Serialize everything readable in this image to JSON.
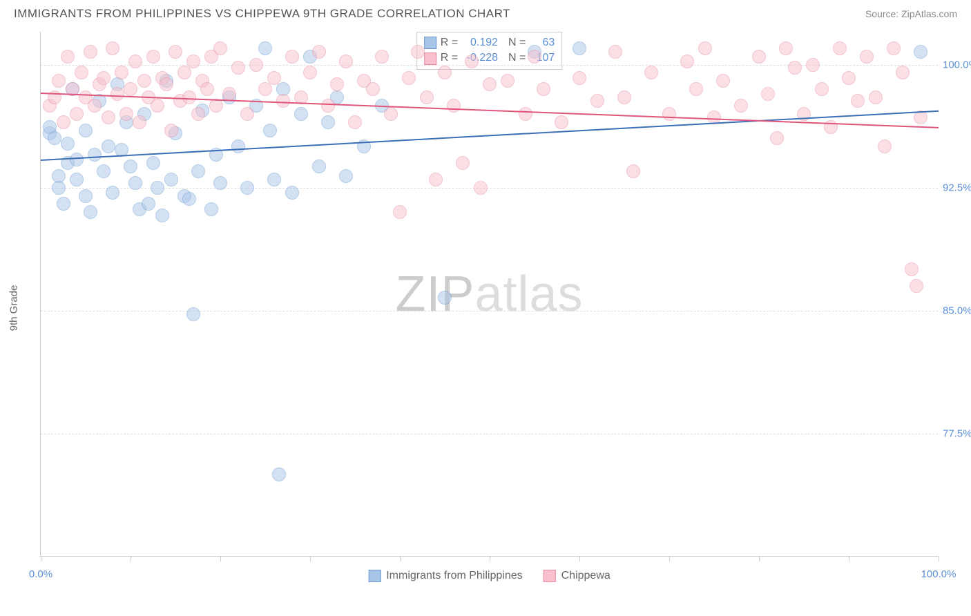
{
  "header": {
    "title": "IMMIGRANTS FROM PHILIPPINES VS CHIPPEWA 9TH GRADE CORRELATION CHART",
    "source": "Source: ZipAtlas.com"
  },
  "chart": {
    "type": "scatter",
    "y_axis_label": "9th Grade",
    "xlim": [
      0,
      100
    ],
    "ylim": [
      70,
      102
    ],
    "x_ticks": [
      0,
      10,
      20,
      30,
      40,
      50,
      60,
      70,
      80,
      90,
      100
    ],
    "x_tick_labels_shown": {
      "0": "0.0%",
      "100": "100.0%"
    },
    "y_grid": [
      77.5,
      85.0,
      92.5,
      100.0
    ],
    "y_tick_labels": [
      "77.5%",
      "85.0%",
      "92.5%",
      "100.0%"
    ],
    "grid_color": "#dddddd",
    "axis_color": "#cccccc",
    "tick_label_color": "#5b8fd6",
    "background_color": "#ffffff",
    "point_radius": 10,
    "point_opacity": 0.5,
    "series": [
      {
        "name": "Immigrants from Philippines",
        "fill": "#a8c5e8",
        "stroke": "#6b9bd1",
        "trend_color": "#3b6fb5",
        "R": "0.192",
        "N": "63",
        "trend": {
          "x1": 0,
          "y1": 94.2,
          "x2": 100,
          "y2": 97.2
        },
        "points": [
          [
            1,
            95.8
          ],
          [
            1,
            96.2
          ],
          [
            1.5,
            95.5
          ],
          [
            2,
            93.2
          ],
          [
            2,
            92.5
          ],
          [
            2.5,
            91.5
          ],
          [
            3,
            94.0
          ],
          [
            3,
            95.2
          ],
          [
            3.5,
            98.5
          ],
          [
            4,
            94.2
          ],
          [
            4,
            93.0
          ],
          [
            5,
            96.0
          ],
          [
            5,
            92.0
          ],
          [
            5.5,
            91.0
          ],
          [
            6,
            94.5
          ],
          [
            6.5,
            97.8
          ],
          [
            7,
            93.5
          ],
          [
            7.5,
            95.0
          ],
          [
            8,
            92.2
          ],
          [
            8.5,
            98.8
          ],
          [
            9,
            94.8
          ],
          [
            9.5,
            96.5
          ],
          [
            10,
            93.8
          ],
          [
            10.5,
            92.8
          ],
          [
            11,
            91.2
          ],
          [
            11.5,
            97.0
          ],
          [
            12,
            91.5
          ],
          [
            12.5,
            94.0
          ],
          [
            13,
            92.5
          ],
          [
            13.5,
            90.8
          ],
          [
            14,
            99.0
          ],
          [
            14.5,
            93.0
          ],
          [
            15,
            95.8
          ],
          [
            16,
            92.0
          ],
          [
            16.5,
            91.8
          ],
          [
            17,
            84.8
          ],
          [
            17.5,
            93.5
          ],
          [
            18,
            97.2
          ],
          [
            19,
            91.2
          ],
          [
            19.5,
            94.5
          ],
          [
            20,
            92.8
          ],
          [
            21,
            98.0
          ],
          [
            22,
            95.0
          ],
          [
            23,
            92.5
          ],
          [
            24,
            97.5
          ],
          [
            25,
            101.0
          ],
          [
            25.5,
            96.0
          ],
          [
            26,
            93.0
          ],
          [
            26.5,
            75.0
          ],
          [
            27,
            98.5
          ],
          [
            28,
            92.2
          ],
          [
            29,
            97.0
          ],
          [
            30,
            100.5
          ],
          [
            31,
            93.8
          ],
          [
            32,
            96.5
          ],
          [
            33,
            98.0
          ],
          [
            34,
            93.2
          ],
          [
            36,
            95.0
          ],
          [
            38,
            97.5
          ],
          [
            45,
            85.8
          ],
          [
            55,
            100.8
          ],
          [
            60,
            101.0
          ],
          [
            98,
            100.8
          ]
        ]
      },
      {
        "name": "Chippewa",
        "fill": "#f7c0cc",
        "stroke": "#e88ba3",
        "trend_color": "#e0567a",
        "R": "-0.228",
        "N": "107",
        "trend": {
          "x1": 0,
          "y1": 98.3,
          "x2": 100,
          "y2": 96.2
        },
        "points": [
          [
            1,
            97.5
          ],
          [
            1.5,
            98.0
          ],
          [
            2,
            99.0
          ],
          [
            2.5,
            96.5
          ],
          [
            3,
            100.5
          ],
          [
            3.5,
            98.5
          ],
          [
            4,
            97.0
          ],
          [
            4.5,
            99.5
          ],
          [
            5,
            98.0
          ],
          [
            5.5,
            100.8
          ],
          [
            6,
            97.5
          ],
          [
            6.5,
            98.8
          ],
          [
            7,
            99.2
          ],
          [
            7.5,
            96.8
          ],
          [
            8,
            101.0
          ],
          [
            8.5,
            98.2
          ],
          [
            9,
            99.5
          ],
          [
            9.5,
            97.0
          ],
          [
            10,
            98.5
          ],
          [
            10.5,
            100.2
          ],
          [
            11,
            96.5
          ],
          [
            11.5,
            99.0
          ],
          [
            12,
            98.0
          ],
          [
            12.5,
            100.5
          ],
          [
            13,
            97.5
          ],
          [
            13.5,
            99.2
          ],
          [
            14,
            98.8
          ],
          [
            14.5,
            96.0
          ],
          [
            15,
            100.8
          ],
          [
            15.5,
            97.8
          ],
          [
            16,
            99.5
          ],
          [
            16.5,
            98.0
          ],
          [
            17,
            100.2
          ],
          [
            17.5,
            97.0
          ],
          [
            18,
            99.0
          ],
          [
            18.5,
            98.5
          ],
          [
            19,
            100.5
          ],
          [
            19.5,
            97.5
          ],
          [
            20,
            101.0
          ],
          [
            21,
            98.2
          ],
          [
            22,
            99.8
          ],
          [
            23,
            97.0
          ],
          [
            24,
            100.0
          ],
          [
            25,
            98.5
          ],
          [
            26,
            99.2
          ],
          [
            27,
            97.8
          ],
          [
            28,
            100.5
          ],
          [
            29,
            98.0
          ],
          [
            30,
            99.5
          ],
          [
            31,
            100.8
          ],
          [
            32,
            97.5
          ],
          [
            33,
            98.8
          ],
          [
            34,
            100.2
          ],
          [
            35,
            96.5
          ],
          [
            36,
            99.0
          ],
          [
            37,
            98.5
          ],
          [
            38,
            100.5
          ],
          [
            39,
            97.0
          ],
          [
            40,
            91.0
          ],
          [
            41,
            99.2
          ],
          [
            42,
            100.8
          ],
          [
            43,
            98.0
          ],
          [
            44,
            93.0
          ],
          [
            45,
            99.5
          ],
          [
            46,
            97.5
          ],
          [
            47,
            94.0
          ],
          [
            48,
            100.2
          ],
          [
            49,
            92.5
          ],
          [
            50,
            98.8
          ],
          [
            52,
            99.0
          ],
          [
            54,
            97.0
          ],
          [
            55,
            100.5
          ],
          [
            56,
            98.5
          ],
          [
            58,
            96.5
          ],
          [
            60,
            99.2
          ],
          [
            62,
            97.8
          ],
          [
            64,
            100.8
          ],
          [
            65,
            98.0
          ],
          [
            66,
            93.5
          ],
          [
            68,
            99.5
          ],
          [
            70,
            97.0
          ],
          [
            72,
            100.2
          ],
          [
            73,
            98.5
          ],
          [
            74,
            101.0
          ],
          [
            75,
            96.8
          ],
          [
            76,
            99.0
          ],
          [
            78,
            97.5
          ],
          [
            80,
            100.5
          ],
          [
            81,
            98.2
          ],
          [
            82,
            95.5
          ],
          [
            83,
            101.0
          ],
          [
            84,
            99.8
          ],
          [
            85,
            97.0
          ],
          [
            86,
            100.0
          ],
          [
            87,
            98.5
          ],
          [
            88,
            96.2
          ],
          [
            89,
            101.0
          ],
          [
            90,
            99.2
          ],
          [
            91,
            97.8
          ],
          [
            92,
            100.5
          ],
          [
            93,
            98.0
          ],
          [
            94,
            95.0
          ],
          [
            95,
            101.0
          ],
          [
            96,
            99.5
          ],
          [
            97,
            87.5
          ],
          [
            97.5,
            86.5
          ],
          [
            98,
            96.8
          ]
        ]
      }
    ],
    "watermark": {
      "bold": "ZIP",
      "light": "atlas"
    },
    "legend": {
      "items": [
        {
          "label": "Immigrants from Philippines",
          "fill": "#a8c5e8",
          "stroke": "#6b9bd1"
        },
        {
          "label": "Chippewa",
          "fill": "#f7c0cc",
          "stroke": "#e88ba3"
        }
      ]
    }
  }
}
